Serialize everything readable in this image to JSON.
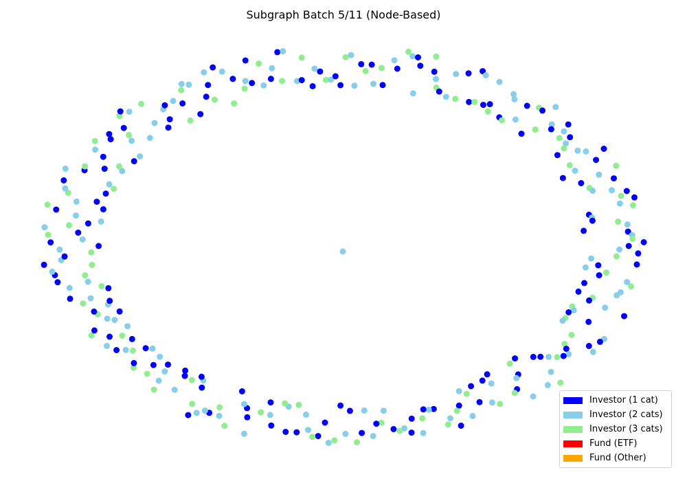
{
  "chart_data": {
    "type": "scatter",
    "title": "Subgraph Batch 5/11 (Node-Based)",
    "axes_visible": false,
    "layout": "ring",
    "center_nodes": 1,
    "ring_nodes": 330,
    "legend": {
      "placement": "lower-right",
      "entries": [
        {
          "label": "Investor (1 cat)",
          "color": "#0000ff"
        },
        {
          "label": "Investor (2 cats)",
          "color": "#87ceeb"
        },
        {
          "label": "Investor (3 cats)",
          "color": "#90ee90"
        },
        {
          "label": "Fund (ETF)",
          "color": "#ff0000"
        },
        {
          "label": "Fund (Other)",
          "color": "#ffa500"
        }
      ]
    },
    "category_pattern": [
      0,
      1,
      0,
      2,
      1,
      0,
      0,
      1,
      2,
      0,
      1,
      2,
      0,
      1,
      1,
      0,
      2,
      0,
      1,
      0,
      2,
      1,
      0,
      0,
      2,
      1,
      1,
      0,
      2,
      0,
      1,
      2
    ]
  }
}
